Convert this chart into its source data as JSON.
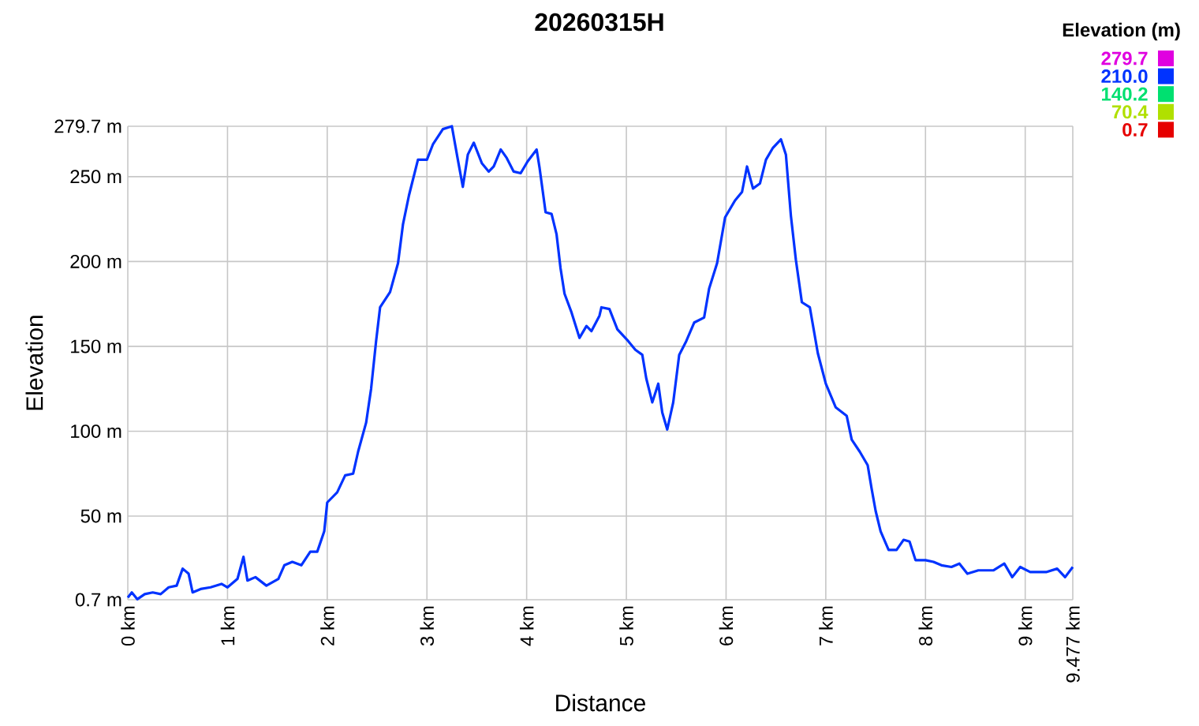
{
  "chart_data": {
    "type": "line",
    "title": "20260315H",
    "xlabel": "Distance",
    "ylabel": "Elevation",
    "clabel": "Elevation (m)",
    "x": [
      0,
      0.04,
      0.095,
      0.17,
      0.25,
      0.33,
      0.41,
      0.49,
      0.55,
      0.61,
      0.65,
      0.73,
      0.83,
      0.94,
      1.0,
      1.1,
      1.16,
      1.2,
      1.28,
      1.39,
      1.51,
      1.57,
      1.65,
      1.74,
      1.83,
      1.9,
      1.97,
      2.0,
      2.1,
      2.18,
      2.26,
      2.31,
      2.39,
      2.44,
      2.49,
      2.53,
      2.63,
      2.71,
      2.76,
      2.82,
      2.91,
      3.0,
      3.06,
      3.16,
      3.25,
      3.31,
      3.36,
      3.41,
      3.47,
      3.55,
      3.62,
      3.67,
      3.74,
      3.8,
      3.87,
      3.94,
      4.01,
      4.1,
      4.13,
      4.19,
      4.25,
      4.3,
      4.34,
      4.38,
      4.45,
      4.53,
      4.6,
      4.65,
      4.73,
      4.75,
      4.83,
      4.91,
      5.02,
      5.09,
      5.16,
      5.2,
      5.26,
      5.32,
      5.36,
      5.41,
      5.47,
      5.53,
      5.6,
      5.68,
      5.78,
      5.83,
      5.91,
      5.99,
      6.09,
      6.16,
      6.21,
      6.27,
      6.34,
      6.4,
      6.47,
      6.55,
      6.6,
      6.65,
      6.7,
      6.76,
      6.84,
      6.92,
      7.0,
      7.1,
      7.21,
      7.26,
      7.34,
      7.42,
      7.46,
      7.5,
      7.55,
      7.63,
      7.71,
      7.78,
      7.84,
      7.9,
      8.0,
      8.08,
      8.16,
      8.26,
      8.34,
      8.42,
      8.53,
      8.68,
      8.79,
      8.87,
      8.95,
      9.05,
      9.21,
      9.32,
      9.4,
      9.477
    ],
    "values": [
      2,
      5,
      1,
      4,
      5,
      4,
      8,
      9,
      19,
      16,
      5,
      7,
      8,
      10,
      8,
      13,
      26,
      12,
      14,
      9,
      13,
      21,
      23,
      21,
      29,
      29,
      41,
      58,
      64,
      74,
      75,
      88,
      105,
      125,
      153,
      173,
      182,
      199,
      222,
      239,
      260,
      260,
      269,
      278,
      279.7,
      260,
      244,
      263,
      270,
      258,
      253,
      256,
      266,
      261,
      253,
      252,
      259,
      266,
      255,
      229,
      228,
      216,
      196,
      181,
      170,
      155,
      162,
      159,
      168,
      173,
      172,
      160,
      153,
      148,
      145,
      131,
      117,
      128,
      111,
      101,
      117,
      145,
      153,
      164,
      167,
      184,
      199,
      226,
      236,
      241,
      256,
      243,
      246,
      260,
      267,
      272,
      263,
      227,
      201,
      176,
      173,
      146,
      128,
      114,
      109,
      95,
      88,
      80,
      66,
      53,
      41,
      30,
      30,
      36,
      35,
      24,
      24,
      23,
      21,
      20,
      22,
      16,
      18,
      18,
      22,
      14,
      20,
      17,
      17,
      19,
      14,
      20
    ],
    "color": "#0033ff",
    "clim": [
      0.7,
      279.7
    ],
    "cticks": [
      {
        "value": 279.7,
        "label": "279.7"
      },
      {
        "value": 210,
        "label": "210.0"
      },
      {
        "value": 140.2,
        "label": "140.2"
      },
      {
        "value": 70.4,
        "label": "70.4"
      },
      {
        "value": 0.7,
        "label": "0.7"
      }
    ],
    "xlim": [
      0,
      9.477
    ],
    "ylim": [
      0.7,
      279.7
    ],
    "xticks": [
      {
        "value": 0,
        "label": "0 km"
      },
      {
        "value": 1,
        "label": "1 km"
      },
      {
        "value": 2,
        "label": "2 km"
      },
      {
        "value": 3,
        "label": "3 km"
      },
      {
        "value": 4,
        "label": "4 km"
      },
      {
        "value": 5,
        "label": "5 km"
      },
      {
        "value": 6,
        "label": "6 km"
      },
      {
        "value": 7,
        "label": "7 km"
      },
      {
        "value": 8,
        "label": "8 km"
      },
      {
        "value": 9,
        "label": "9 km"
      },
      {
        "value": 9.477,
        "label": "9.477 km"
      }
    ],
    "yticks": [
      {
        "value": 0.7,
        "label": "0.7 m"
      },
      {
        "value": 50,
        "label": "50 m"
      },
      {
        "value": 100,
        "label": "100 m"
      },
      {
        "value": 150,
        "label": "150 m"
      },
      {
        "value": 200,
        "label": "200 m"
      },
      {
        "value": 250,
        "label": "250 m"
      },
      {
        "value": 279.7,
        "label": "279.7 m"
      }
    ],
    "grid": true,
    "marker": "none",
    "line_style": "solid"
  }
}
